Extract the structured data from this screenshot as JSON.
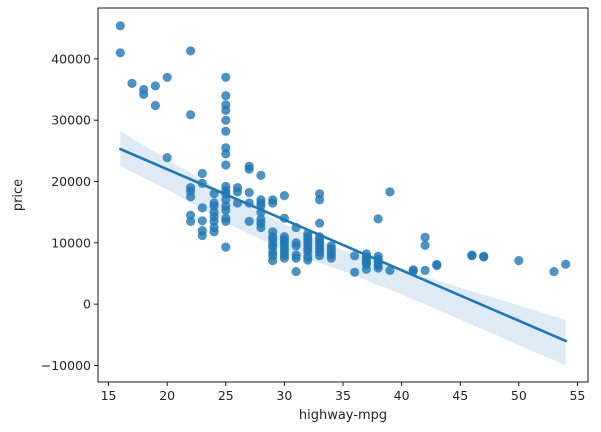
{
  "chart_data": {
    "type": "scatter",
    "title": "",
    "xlabel": "highway-mpg",
    "ylabel": "price",
    "xlim": [
      14.1,
      55.9
    ],
    "ylim": [
      -12700,
      48300
    ],
    "xticks": [
      15,
      20,
      25,
      30,
      35,
      40,
      45,
      50,
      55
    ],
    "yticks": [
      -10000,
      0,
      10000,
      20000,
      30000,
      40000
    ],
    "grid": false,
    "legend": "none",
    "point_color": "#1f77b4",
    "points": [
      [
        16,
        45400
      ],
      [
        16,
        41000
      ],
      [
        17,
        36000
      ],
      [
        18,
        35000
      ],
      [
        18,
        34200
      ],
      [
        19,
        35600
      ],
      [
        19,
        32400
      ],
      [
        20,
        37000
      ],
      [
        20,
        23900
      ],
      [
        22,
        41300
      ],
      [
        22,
        30900
      ],
      [
        22,
        19000
      ],
      [
        22,
        18400
      ],
      [
        22,
        17500
      ],
      [
        22,
        14500
      ],
      [
        22,
        13500
      ],
      [
        23,
        21300
      ],
      [
        23,
        19700
      ],
      [
        23,
        15700
      ],
      [
        23,
        13600
      ],
      [
        23,
        12000
      ],
      [
        23,
        11200
      ],
      [
        24,
        18000
      ],
      [
        24,
        16500
      ],
      [
        24,
        16000
      ],
      [
        24,
        15000
      ],
      [
        24,
        14300
      ],
      [
        24,
        13500
      ],
      [
        24,
        12500
      ],
      [
        24,
        11800
      ],
      [
        25,
        37000
      ],
      [
        25,
        34000
      ],
      [
        25,
        32500
      ],
      [
        25,
        31600
      ],
      [
        25,
        30000
      ],
      [
        25,
        28200
      ],
      [
        25,
        25500
      ],
      [
        25,
        24500
      ],
      [
        25,
        22700
      ],
      [
        25,
        19200
      ],
      [
        25,
        18500
      ],
      [
        25,
        18000
      ],
      [
        25,
        17000
      ],
      [
        25,
        16000
      ],
      [
        25,
        15300
      ],
      [
        25,
        14000
      ],
      [
        25,
        13500
      ],
      [
        25,
        9300
      ],
      [
        26,
        19000
      ],
      [
        26,
        18300
      ],
      [
        26,
        16500
      ],
      [
        27,
        22500
      ],
      [
        27,
        22000
      ],
      [
        27,
        18200
      ],
      [
        27,
        16500
      ],
      [
        27,
        13500
      ],
      [
        28,
        21000
      ],
      [
        28,
        17000
      ],
      [
        28,
        16500
      ],
      [
        28,
        16000
      ],
      [
        28,
        15000
      ],
      [
        28,
        13800
      ],
      [
        28,
        13200
      ],
      [
        28,
        12500
      ],
      [
        29,
        17000
      ],
      [
        29,
        16500
      ],
      [
        29,
        11800
      ],
      [
        29,
        11000
      ],
      [
        29,
        10500
      ],
      [
        29,
        9800
      ],
      [
        29,
        9300
      ],
      [
        29,
        8500
      ],
      [
        29,
        7900
      ],
      [
        29,
        7100
      ],
      [
        30,
        17700
      ],
      [
        30,
        14000
      ],
      [
        30,
        11000
      ],
      [
        30,
        10500
      ],
      [
        30,
        10000
      ],
      [
        30,
        9500
      ],
      [
        30,
        9000
      ],
      [
        30,
        8500
      ],
      [
        30,
        8000
      ],
      [
        30,
        7500
      ],
      [
        31,
        12500
      ],
      [
        31,
        10000
      ],
      [
        31,
        9500
      ],
      [
        31,
        8000
      ],
      [
        31,
        7500
      ],
      [
        31,
        5300
      ],
      [
        32,
        11500
      ],
      [
        32,
        11000
      ],
      [
        32,
        10500
      ],
      [
        32,
        10000
      ],
      [
        32,
        9500
      ],
      [
        32,
        9000
      ],
      [
        32,
        8500
      ],
      [
        32,
        7700
      ],
      [
        32,
        7200
      ],
      [
        33,
        18000
      ],
      [
        33,
        17000
      ],
      [
        33,
        13200
      ],
      [
        33,
        11000
      ],
      [
        33,
        10500
      ],
      [
        33,
        10000
      ],
      [
        33,
        9500
      ],
      [
        33,
        9000
      ],
      [
        33,
        8500
      ],
      [
        33,
        7900
      ],
      [
        34,
        9500
      ],
      [
        34,
        9000
      ],
      [
        34,
        8500
      ],
      [
        34,
        8000
      ],
      [
        34,
        7500
      ],
      [
        36,
        7900
      ],
      [
        36,
        5200
      ],
      [
        37,
        8200
      ],
      [
        37,
        7700
      ],
      [
        37,
        7300
      ],
      [
        37,
        6800
      ],
      [
        37,
        6500
      ],
      [
        37,
        5700
      ],
      [
        38,
        13900
      ],
      [
        38,
        7800
      ],
      [
        38,
        7300
      ],
      [
        38,
        6800
      ],
      [
        38,
        6300
      ],
      [
        38,
        5900
      ],
      [
        39,
        18300
      ],
      [
        39,
        5500
      ],
      [
        41,
        5600
      ],
      [
        41,
        5400
      ],
      [
        42,
        10900
      ],
      [
        42,
        9600
      ],
      [
        42,
        5500
      ],
      [
        43,
        6500
      ],
      [
        43,
        6300
      ],
      [
        46,
        8000
      ],
      [
        46,
        7900
      ],
      [
        47,
        7800
      ],
      [
        47,
        7700
      ],
      [
        50,
        7100
      ],
      [
        53,
        5300
      ],
      [
        54,
        6500
      ]
    ],
    "regression": {
      "x_start": 16,
      "y_start": 25300,
      "x_end": 54,
      "y_end": -6000
    },
    "confidence_band": {
      "x": [
        16,
        20,
        25,
        30,
        35,
        40,
        45,
        50,
        54
      ],
      "upper": [
        28200,
        23600,
        18000,
        13000,
        8800,
        5600,
        2700,
        -200,
        -2600
      ],
      "lower": [
        22500,
        18700,
        13300,
        8700,
        5400,
        1600,
        -2500,
        -6700,
        -10000
      ]
    }
  }
}
